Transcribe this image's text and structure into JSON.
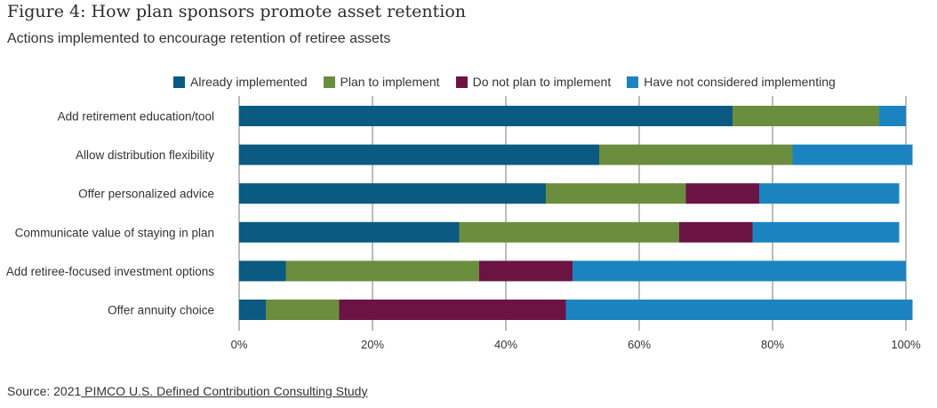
{
  "figure": {
    "title": "Figure 4: How plan sponsors promote asset retention",
    "subtitle": "Actions implemented to encourage retention of retiree assets"
  },
  "legend": [
    {
      "label": "Already implemented",
      "color": "#0a5a82"
    },
    {
      "label": "Plan to implement",
      "color": "#6b8e3e"
    },
    {
      "label": "Do not plan to implement",
      "color": "#6b1444"
    },
    {
      "label": "Have not considered implementing",
      "color": "#1b84c0"
    }
  ],
  "source": {
    "prefix": "Source: 2021",
    "link": " PIMCO U.S. Defined Contribution Consulting Study"
  },
  "chart_data": {
    "type": "bar",
    "orientation": "horizontal",
    "stacked": true,
    "categories": [
      "Add retirement education/tool",
      "Allow distribution flexibility",
      "Offer personalized advice",
      "Communicate value of staying in plan",
      "Add retiree-focused investment options",
      "Offer annuity choice"
    ],
    "series": [
      {
        "name": "Already implemented",
        "color": "#0a5a82",
        "values": [
          74,
          54,
          46,
          33,
          7,
          4
        ]
      },
      {
        "name": "Plan to implement",
        "color": "#6b8e3e",
        "values": [
          22,
          29,
          21,
          33,
          29,
          11
        ]
      },
      {
        "name": "Do not plan to implement",
        "color": "#6b1444",
        "values": [
          0,
          0,
          11,
          11,
          14,
          34
        ]
      },
      {
        "name": "Have not considered implementing",
        "color": "#1b84c0",
        "values": [
          4,
          18,
          21,
          22,
          50,
          52
        ]
      }
    ],
    "xlim": [
      0,
      100
    ],
    "xticks": [
      "0%",
      "20%",
      "40%",
      "60%",
      "80%",
      "100%"
    ],
    "xtick_values": [
      0,
      20,
      40,
      60,
      80,
      100
    ],
    "grid": true,
    "legend_position": "top"
  }
}
